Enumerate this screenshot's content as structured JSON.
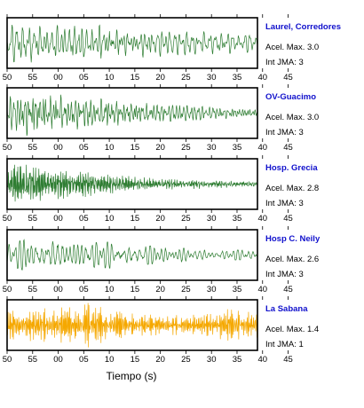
{
  "chart_data": {
    "type": "line",
    "xlabel": "Tiempo (s)",
    "xlim": [
      50,
      99
    ],
    "tick_labels": [
      "50",
      "55",
      "00",
      "05",
      "10",
      "15",
      "20",
      "25",
      "30",
      "35",
      "40",
      "45"
    ],
    "grid": false,
    "panels": [
      {
        "station": "Laurel, Corredores",
        "accel_label": "Acel. Max. 3.0",
        "jma_label": "Int JMA: 3",
        "color": "#2e7d32",
        "peak_accel": 3.0,
        "jma": 3,
        "envelope": [
          [
            50,
            0.65
          ],
          [
            53,
            0.9
          ],
          [
            56,
            0.75
          ],
          [
            60,
            0.7
          ],
          [
            65,
            0.75
          ],
          [
            70,
            0.75
          ],
          [
            75,
            0.65
          ],
          [
            80,
            0.55
          ],
          [
            85,
            0.5
          ],
          [
            90,
            0.45
          ],
          [
            95,
            0.4
          ],
          [
            99,
            0.35
          ]
        ],
        "freq": 1.6,
        "seed": 11
      },
      {
        "station": "OV-Guacimo",
        "accel_label": "Acel. Max. 3.0",
        "jma_label": "Int JMA: 3",
        "color": "#2e7d32",
        "peak_accel": 3.0,
        "jma": 3,
        "envelope": [
          [
            50,
            0.6
          ],
          [
            52,
            0.85
          ],
          [
            55,
            0.95
          ],
          [
            58,
            0.8
          ],
          [
            62,
            0.7
          ],
          [
            66,
            0.6
          ],
          [
            70,
            0.55
          ],
          [
            75,
            0.45
          ],
          [
            80,
            0.35
          ],
          [
            85,
            0.3
          ],
          [
            90,
            0.25
          ],
          [
            95,
            0.22
          ],
          [
            99,
            0.2
          ]
        ],
        "freq": 1.8,
        "seed": 23
      },
      {
        "station": "Hosp. Grecia",
        "accel_label": "Acel. Max. 2.8",
        "jma_label": "Int JMA: 3",
        "color": "#2e7d32",
        "peak_accel": 2.8,
        "jma": 3,
        "envelope": [
          [
            50,
            0.35
          ],
          [
            51,
            0.95
          ],
          [
            53,
            0.85
          ],
          [
            56,
            0.7
          ],
          [
            60,
            0.6
          ],
          [
            64,
            0.55
          ],
          [
            68,
            0.45
          ],
          [
            72,
            0.35
          ],
          [
            78,
            0.25
          ],
          [
            85,
            0.2
          ],
          [
            92,
            0.18
          ],
          [
            99,
            0.15
          ]
        ],
        "freq": 3.4,
        "seed": 37
      },
      {
        "station": "Hosp C. Neily",
        "accel_label": "Acel. Max. 2.6",
        "jma_label": "Int JMA: 3",
        "color": "#2e7d32",
        "peak_accel": 2.6,
        "jma": 3,
        "envelope": [
          [
            50,
            0.4
          ],
          [
            53,
            0.6
          ],
          [
            57,
            0.75
          ],
          [
            60,
            0.6
          ],
          [
            64,
            0.5
          ],
          [
            68,
            0.5
          ],
          [
            72,
            0.55
          ],
          [
            76,
            0.4
          ],
          [
            82,
            0.3
          ],
          [
            88,
            0.25
          ],
          [
            94,
            0.2
          ],
          [
            99,
            0.18
          ]
        ],
        "freq": 1.2,
        "seed": 51
      },
      {
        "station": "La Sabana",
        "accel_label": "Acel. Max. 1.4",
        "jma_label": "Int JMA: 1",
        "color": "#f5a800",
        "peak_accel": 1.4,
        "jma": 1,
        "envelope": [
          [
            50,
            0.55
          ],
          [
            55,
            0.65
          ],
          [
            60,
            0.7
          ],
          [
            64,
            0.75
          ],
          [
            66,
            0.9
          ],
          [
            70,
            0.6
          ],
          [
            75,
            0.45
          ],
          [
            80,
            0.4
          ],
          [
            85,
            0.4
          ],
          [
            90,
            0.45
          ],
          [
            93,
            0.65
          ],
          [
            96,
            0.55
          ],
          [
            99,
            0.5
          ]
        ],
        "freq": 4.2,
        "seed": 73
      }
    ]
  }
}
